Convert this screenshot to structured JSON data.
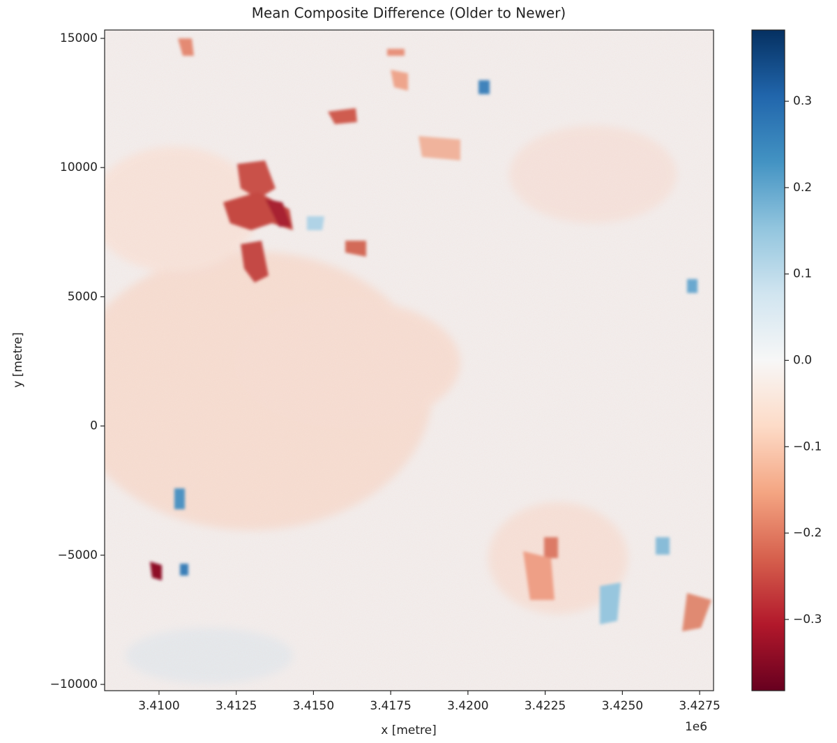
{
  "chart_data": {
    "type": "heatmap",
    "title": "Mean Composite Difference (Older to Newer)",
    "x_label": "x [metre]",
    "y_label": "y [metre]",
    "x_offset_label": "1e6",
    "xlim": [
      3408240,
      3427950
    ],
    "xticks": [
      {
        "value": 3410000,
        "label": "3.4100"
      },
      {
        "value": 3412500,
        "label": "3.4125"
      },
      {
        "value": 3415000,
        "label": "3.4150"
      },
      {
        "value": 3417500,
        "label": "3.4175"
      },
      {
        "value": 3420000,
        "label": "3.4200"
      },
      {
        "value": 3422500,
        "label": "3.4225"
      },
      {
        "value": 3425000,
        "label": "3.4250"
      },
      {
        "value": 3427500,
        "label": "3.4275"
      }
    ],
    "ylim": [
      -10243,
      15324
    ],
    "yticks": [
      {
        "value": -10000,
        "label": "−10000"
      },
      {
        "value": -5000,
        "label": "−5000"
      },
      0,
      5000,
      10000,
      15000
    ],
    "colorbar": {
      "lim": [
        -0.3825,
        0.3825
      ],
      "ticks": [
        {
          "value": -0.3,
          "label": "−0.3"
        },
        {
          "value": -0.2,
          "label": "−0.2"
        },
        {
          "value": -0.1,
          "label": "−0.1"
        },
        {
          "value": 0.0,
          "label": "0.0"
        },
        0.1,
        0.2,
        0.3
      ],
      "colors": [
        "#67001f",
        "#b2182b",
        "#d6604d",
        "#f4a582",
        "#fddbc7",
        "#f7f7f7",
        "#d1e5f0",
        "#92c5de",
        "#4393c3",
        "#2166ac",
        "#053061"
      ]
    }
  }
}
